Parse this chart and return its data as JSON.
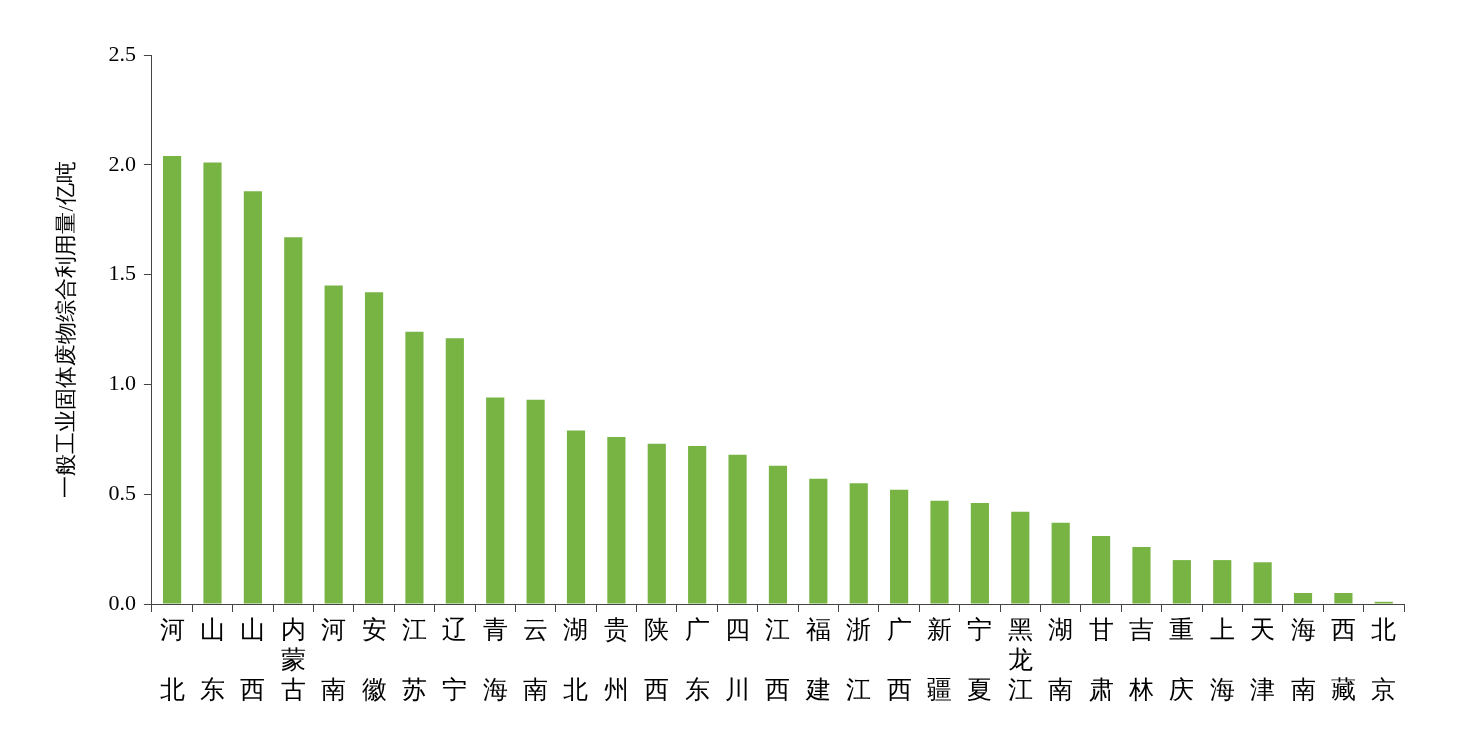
{
  "chart_data": {
    "type": "bar",
    "ylabel": "一般工业固体废物综合利用量/亿吨",
    "categories": [
      "河北",
      "山东",
      "山西",
      "内蒙古",
      "河南",
      "安徽",
      "江苏",
      "辽宁",
      "青海",
      "云南",
      "湖北",
      "贵州",
      "陕西",
      "广东",
      "四川",
      "江西",
      "福建",
      "浙江",
      "广西",
      "新疆",
      "宁夏",
      "黑龙江",
      "湖南",
      "甘肃",
      "吉林",
      "重庆",
      "上海",
      "天津",
      "海南",
      "西藏",
      "北京"
    ],
    "values": [
      2.04,
      2.01,
      1.88,
      1.67,
      1.45,
      1.42,
      1.24,
      1.21,
      0.94,
      0.93,
      0.79,
      0.76,
      0.73,
      0.72,
      0.68,
      0.63,
      0.57,
      0.55,
      0.52,
      0.47,
      0.46,
      0.42,
      0.37,
      0.31,
      0.26,
      0.2,
      0.2,
      0.19,
      0.05,
      0.05,
      0.01
    ],
    "color": "#78b444",
    "ylim": [
      0,
      2.5
    ],
    "yticks": [
      {
        "value": 0,
        "label": "0.0"
      },
      0.5,
      {
        "value": 1,
        "label": "1.0"
      },
      1.5,
      {
        "value": 2,
        "label": "2.0"
      },
      2.5
    ],
    "grid": false,
    "legend": false
  }
}
